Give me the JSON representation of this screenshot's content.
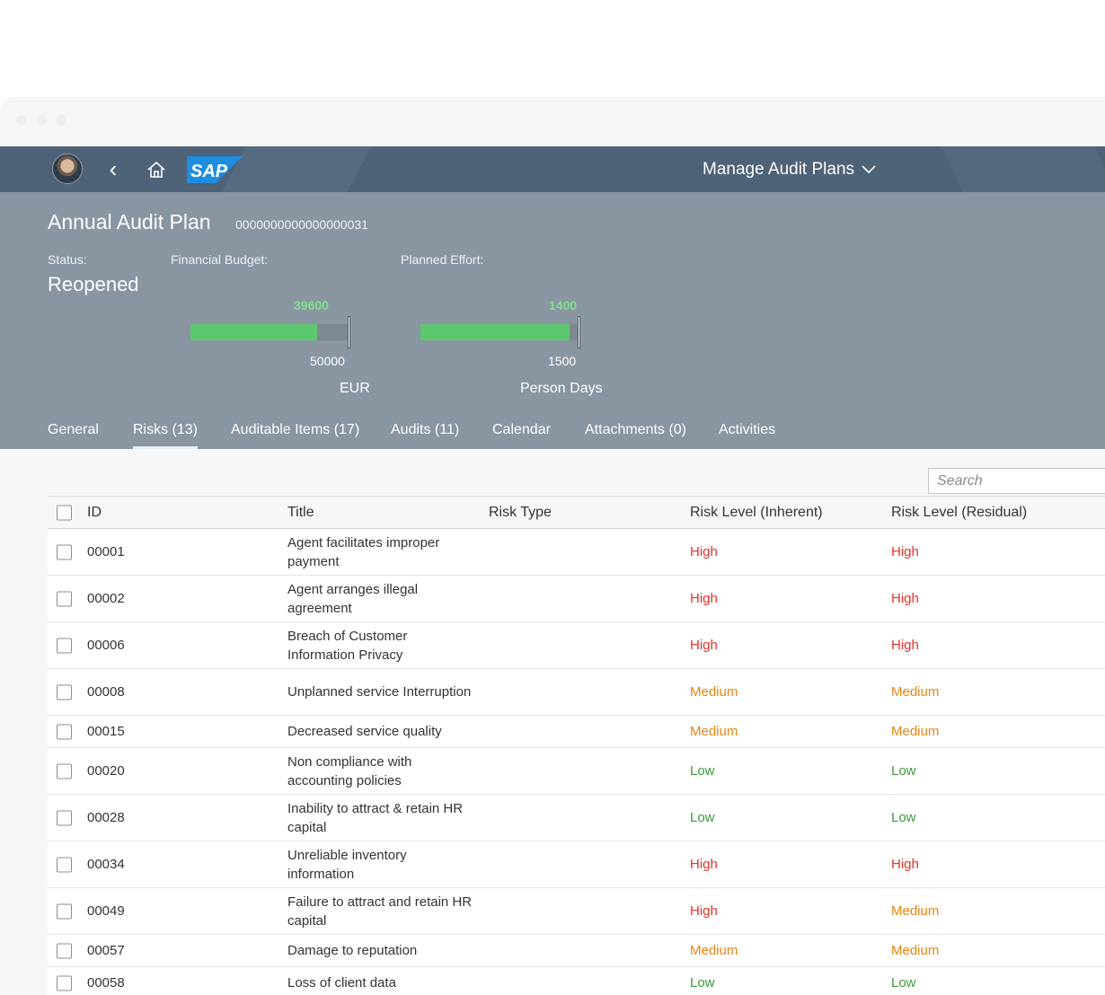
{
  "shell": {
    "title": "Manage Audit Plans",
    "logo": "SAP",
    "icons": [
      "avatar",
      "back-icon",
      "home-icon",
      "chevron-down-icon"
    ]
  },
  "header": {
    "title": "Annual Audit Plan",
    "id": "0000000000000000031",
    "status_label": "Status:",
    "status_value": "Reopened",
    "budget_label": "Financial Budget:",
    "effort_label": "Planned Effort:",
    "budget": {
      "actual": "39600",
      "target": "50000",
      "unit": "EUR",
      "fraction": 0.792
    },
    "effort": {
      "actual": "1400",
      "target": "1500",
      "unit": "Person Days",
      "fraction": 0.933
    }
  },
  "tabs": [
    {
      "label": "General"
    },
    {
      "label": "Risks (13)",
      "active": true
    },
    {
      "label": "Auditable Items (17)"
    },
    {
      "label": "Audits (11)"
    },
    {
      "label": "Calendar"
    },
    {
      "label": "Attachments (0)"
    },
    {
      "label": "Activities"
    }
  ],
  "search": {
    "placeholder": "Search"
  },
  "columns": [
    "ID",
    "Title",
    "Risk Type",
    "Risk Level (Inherent)",
    "Risk Level (Residual)"
  ],
  "rows": [
    {
      "id": "00001",
      "title": "Agent facilitates improper payment",
      "type": "",
      "inherent": "High",
      "residual": "High"
    },
    {
      "id": "00002",
      "title": "Agent arranges illegal agreement",
      "type": "",
      "inherent": "High",
      "residual": "High"
    },
    {
      "id": "00006",
      "title": "Breach of Customer Information Privacy",
      "type": "",
      "inherent": "High",
      "residual": "High"
    },
    {
      "id": "00008",
      "title": "Unplanned service Interruption",
      "type": "",
      "inherent": "Medium",
      "residual": "Medium"
    },
    {
      "id": "00015",
      "title": "Decreased service quality",
      "type": "",
      "inherent": "Medium",
      "residual": "Medium"
    },
    {
      "id": "00020",
      "title": "Non compliance with accounting policies",
      "type": "",
      "inherent": "Low",
      "residual": "Low"
    },
    {
      "id": "00028",
      "title": "Inability to attract & retain HR capital",
      "type": "",
      "inherent": "Low",
      "residual": "Low"
    },
    {
      "id": "00034",
      "title": "Unreliable inventory information",
      "type": "",
      "inherent": "High",
      "residual": "High"
    },
    {
      "id": "00049",
      "title": "Failure to attract and retain HR capital",
      "type": "",
      "inherent": "High",
      "residual": "Medium"
    },
    {
      "id": "00057",
      "title": "Damage to reputation",
      "type": "",
      "inherent": "Medium",
      "residual": "Medium"
    },
    {
      "id": "00058",
      "title": "Loss of client data",
      "type": "",
      "inherent": "Low",
      "residual": "Low"
    }
  ],
  "colors": {
    "shell": "#4e6278",
    "header": "#8995a1",
    "high": "#e0342a",
    "medium": "#e8850d",
    "low": "#3b9a3b",
    "bar": "#5cc86e"
  }
}
